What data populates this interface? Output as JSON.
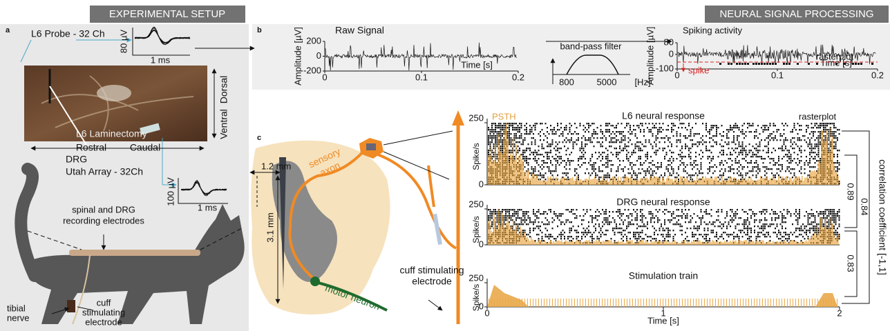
{
  "headers": {
    "left": "EXPERIMENTAL SETUP",
    "right": "NEURAL SIGNAL PROCESSING"
  },
  "panel_a": {
    "label": "a",
    "probe": "L6 Probe - 32 Ch",
    "probe_scale_y": "80 µV",
    "probe_scale_x": "1 ms",
    "dorsal": "Dorsal",
    "ventral": "Ventral",
    "laminectomy": "L6 Laminectomy",
    "rostral": "Rostral",
    "caudal": "Caudal",
    "drg": "DRG",
    "utah": "Utah Array - 32Ch",
    "utah_scale_y": "100 µV",
    "utah_scale_x": "1 ms",
    "electrodes": [
      "spinal and DRG",
      "recording electrodes"
    ],
    "cuff": [
      "cuff",
      "stimulating",
      "electrode"
    ],
    "nerve": [
      "tibial",
      "nerve"
    ]
  },
  "panel_b": {
    "label": "b",
    "raw": {
      "title": "Raw Signal",
      "ylabel": "Amplitude [µV]",
      "yticks": [
        200,
        0,
        -200
      ],
      "xticks": [
        0,
        0.1,
        0.2
      ],
      "xlabel": "Time [s]"
    },
    "filter": {
      "title": "band-pass filter",
      "low": 800,
      "high": 5000,
      "unit": "[Hz]"
    },
    "spiking": {
      "title": "Spiking activity",
      "ylabel": "Amplitude [µV]",
      "yticks": [
        80,
        0,
        -100
      ],
      "spike": "spike",
      "raster": "rasterplot",
      "xticks": [
        0,
        0.1,
        0.2
      ],
      "xlabel": "Time [s]"
    }
  },
  "panel_c": {
    "label": "c",
    "width": "1.2 mm",
    "depth": "3.1 mm",
    "sensory": [
      "sensory",
      "axon"
    ],
    "motor": "motor neuron",
    "cuff": [
      "cuff stimulating",
      "electrode"
    ],
    "psth": "PSTH",
    "raster": "rasterplot",
    "plots": [
      {
        "title": "L6 neural response",
        "ylabel": "Spike/s",
        "yticks": [
          250,
          0
        ]
      },
      {
        "title": "DRG neural response",
        "ylabel": "Spike/s",
        "yticks": [
          250,
          0
        ]
      },
      {
        "title": "Stimulation train",
        "ylabel": "Spike/s",
        "yticks": [
          250,
          0
        ]
      }
    ],
    "xticks": [
      0,
      1,
      2
    ],
    "xlabel": "Time [s]",
    "correlations": [
      0.89,
      0.84,
      0.83
    ],
    "correlation_label": "correlation coefficient [-1,1]"
  }
}
